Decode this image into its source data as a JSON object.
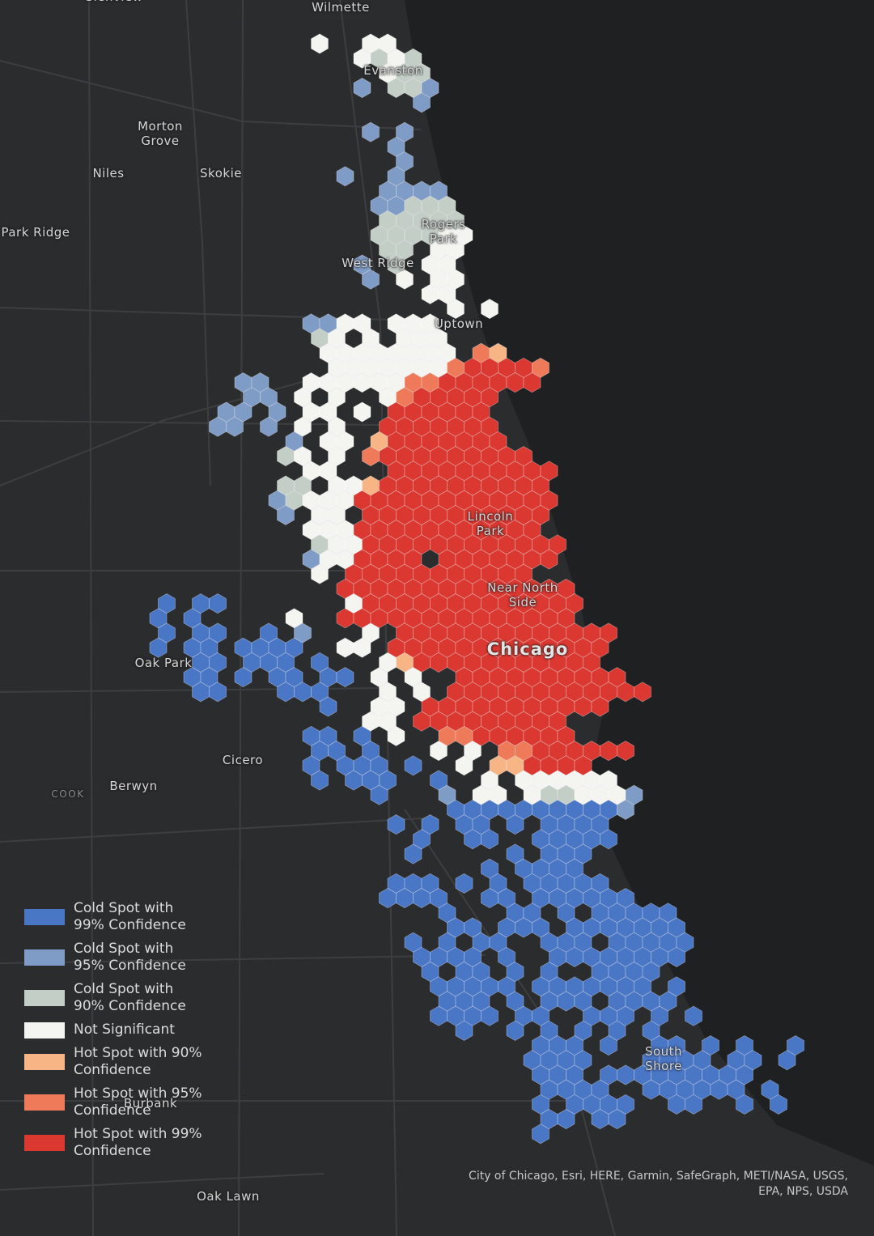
{
  "places": [
    "Glenview",
    "Wilmette",
    "Evanston",
    "Morton Grove",
    "Niles",
    "Skokie",
    "Park Ridge",
    "Rogers Park",
    "West Ridge",
    "Uptown",
    "Lincoln Park",
    "Near North Side",
    "Chicago",
    "Oak Park",
    "Cicero",
    "COOK",
    "Berwyn",
    "South Shore",
    "Burbank",
    "Oak Lawn"
  ],
  "legend": [
    "Cold Spot with 99% Confidence",
    "Cold Spot with 95% Confidence",
    "Cold Spot with 90% Confidence",
    "Not Significant",
    "Hot Spot with 90% Confidence",
    "Hot Spot with 95% Confidence",
    "Hot Spot with 99% Confidence"
  ],
  "attribution": "City of Chicago, Esri, HERE, Garmin, SafeGraph, METI/NASA, USGS, EPA, NPS, USDA"
}
